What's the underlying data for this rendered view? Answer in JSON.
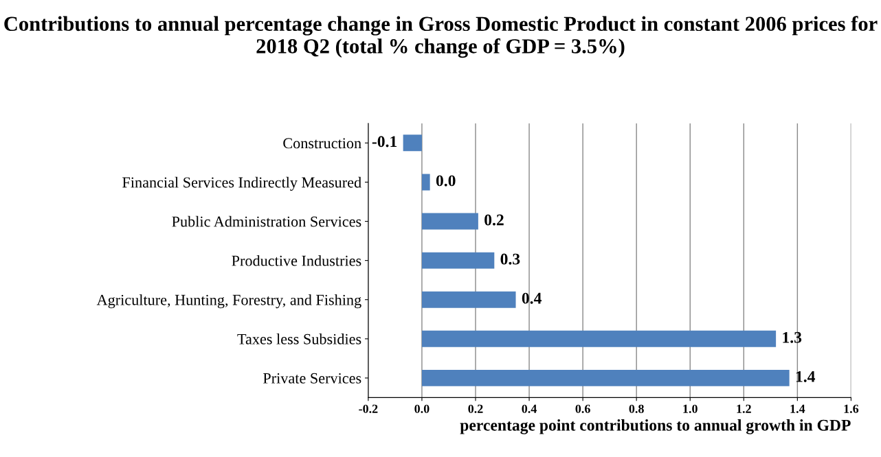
{
  "chart_data": {
    "type": "bar",
    "orientation": "horizontal",
    "title": "Contributions to annual percentage change in Gross Domestic Product in constant 2006 prices for 2018 Q2 (total % change of GDP = 3.5%)",
    "xlabel": "percentage point contributions to annual growth in GDP",
    "categories": [
      "Construction",
      "Financial Services Indirectly Measured",
      "Public Administration Services",
      "Productive Industries",
      "Agriculture, Hunting, Forestry, and Fishing",
      "Taxes less Subsidies",
      "Private Services"
    ],
    "values": [
      -0.07,
      0.03,
      0.21,
      0.27,
      0.35,
      1.32,
      1.37
    ],
    "value_labels": [
      "-0.1",
      "0.0",
      "0.2",
      "0.3",
      "0.4",
      "1.3",
      "1.4"
    ],
    "color": "#4f81bd",
    "xlim": [
      -0.2,
      1.6
    ],
    "xticks": [
      -0.2,
      {
        "value": 0,
        "label": "0.0"
      },
      0.2,
      0.4,
      0.6,
      0.8,
      {
        "value": 1,
        "label": "1.0"
      },
      1.2,
      1.4,
      1.6
    ],
    "grid": "x"
  }
}
